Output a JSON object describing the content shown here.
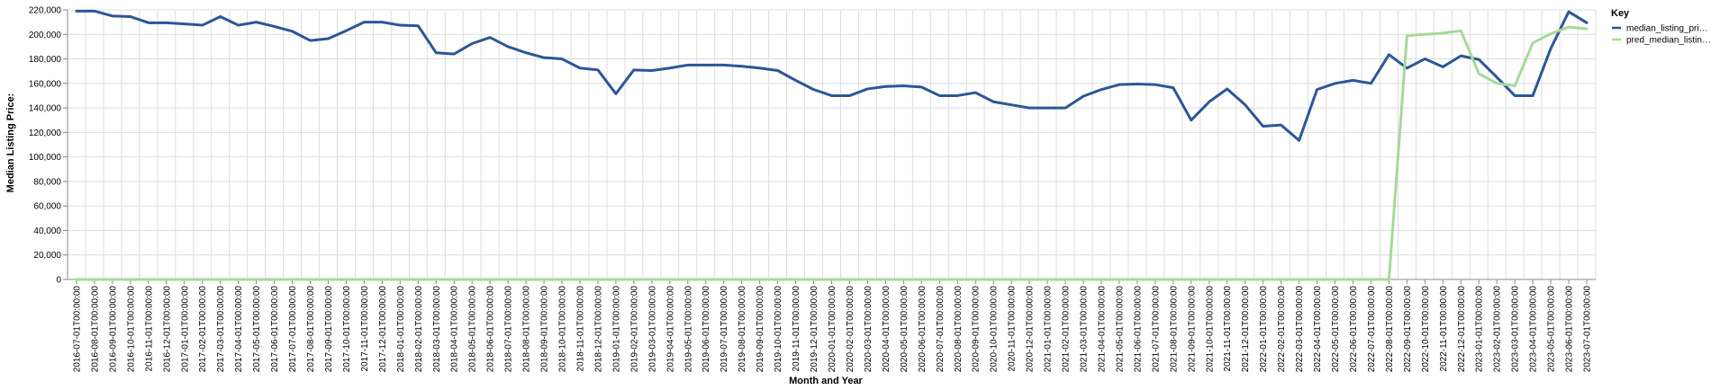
{
  "chart_data": {
    "type": "line",
    "xlabel": "Month and Year",
    "ylabel": "Median Listing Price:",
    "ylim": [
      0,
      220000
    ],
    "yticks": [
      "0",
      "20,000",
      "40,000",
      "60,000",
      "80,000",
      "100,000",
      "120,000",
      "140,000",
      "160,000",
      "180,000",
      "200,000",
      "220,000"
    ],
    "grid": true,
    "legend_position": "top-right",
    "legend_title": "Key",
    "categories": [
      "2016-07-01T00:00:00",
      "2016-08-01T00:00:00",
      "2016-09-01T00:00:00",
      "2016-10-01T00:00:00",
      "2016-11-01T00:00:00",
      "2016-12-01T00:00:00",
      "2017-01-01T00:00:00",
      "2017-02-01T00:00:00",
      "2017-03-01T00:00:00",
      "2017-04-01T00:00:00",
      "2017-05-01T00:00:00",
      "2017-06-01T00:00:00",
      "2017-07-01T00:00:00",
      "2017-08-01T00:00:00",
      "2017-09-01T00:00:00",
      "2017-10-01T00:00:00",
      "2017-11-01T00:00:00",
      "2017-12-01T00:00:00",
      "2018-01-01T00:00:00",
      "2018-02-01T00:00:00",
      "2018-03-01T00:00:00",
      "2018-04-01T00:00:00",
      "2018-05-01T00:00:00",
      "2018-06-01T00:00:00",
      "2018-07-01T00:00:00",
      "2018-08-01T00:00:00",
      "2018-09-01T00:00:00",
      "2018-10-01T00:00:00",
      "2018-11-01T00:00:00",
      "2018-12-01T00:00:00",
      "2019-01-01T00:00:00",
      "2019-02-01T00:00:00",
      "2019-03-01T00:00:00",
      "2019-04-01T00:00:00",
      "2019-05-01T00:00:00",
      "2019-06-01T00:00:00",
      "2019-07-01T00:00:00",
      "2019-08-01T00:00:00",
      "2019-09-01T00:00:00",
      "2019-10-01T00:00:00",
      "2019-11-01T00:00:00",
      "2019-12-01T00:00:00",
      "2020-01-01T00:00:00",
      "2020-02-01T00:00:00",
      "2020-03-01T00:00:00",
      "2020-04-01T00:00:00",
      "2020-05-01T00:00:00",
      "2020-06-01T00:00:00",
      "2020-07-01T00:00:00",
      "2020-08-01T00:00:00",
      "2020-09-01T00:00:00",
      "2020-10-01T00:00:00",
      "2020-11-01T00:00:00",
      "2020-12-01T00:00:00",
      "2021-01-01T00:00:00",
      "2021-02-01T00:00:00",
      "2021-03-01T00:00:00",
      "2021-04-01T00:00:00",
      "2021-05-01T00:00:00",
      "2021-06-01T00:00:00",
      "2021-07-01T00:00:00",
      "2021-08-01T00:00:00",
      "2021-09-01T00:00:00",
      "2021-10-01T00:00:00",
      "2021-11-01T00:00:00",
      "2021-12-01T00:00:00",
      "2022-01-01T00:00:00",
      "2022-02-01T00:00:00",
      "2022-03-01T00:00:00",
      "2022-04-01T00:00:00",
      "2022-05-01T00:00:00",
      "2022-06-01T00:00:00",
      "2022-07-01T00:00:00",
      "2022-08-01T00:00:00",
      "2022-09-01T00:00:00",
      "2022-10-01T00:00:00",
      "2022-11-01T00:00:00",
      "2022-12-01T00:00:00",
      "2023-01-01T00:00:00",
      "2023-02-01T00:00:00",
      "2023-03-01T00:00:00",
      "2023-04-01T00:00:00",
      "2023-05-01T00:00:00",
      "2023-06-01T00:00:00",
      "2023-07-01T00:00:00"
    ],
    "series": [
      {
        "name": "median_listing_pri…",
        "color": "#2c5697",
        "values": [
          219000,
          219000,
          215000,
          214500,
          209500,
          209500,
          208500,
          207500,
          214500,
          207500,
          210000,
          206500,
          202500,
          195000,
          196500,
          203000,
          210000,
          210000,
          207500,
          207000,
          185000,
          184000,
          192500,
          197500,
          190000,
          185000,
          181000,
          180000,
          172500,
          171000,
          151500,
          171000,
          170500,
          172500,
          175000,
          175000,
          175000,
          174000,
          172500,
          170500,
          162500,
          155000,
          150000,
          150000,
          155500,
          157500,
          158000,
          157000,
          150000,
          150000,
          152500,
          145000,
          142500,
          140000,
          140000,
          140000,
          149500,
          155000,
          159000,
          159500,
          159000,
          156500,
          130000,
          145000,
          155500,
          142500,
          125000,
          126000,
          113500,
          155000,
          160000,
          162500,
          160000,
          183500,
          172500,
          180000,
          173500,
          182500,
          179500,
          165000,
          150000,
          150000,
          188500,
          218500,
          209500
        ]
      },
      {
        "name": "pred_median_listin…",
        "color": "#a6d99a",
        "values": [
          0,
          0,
          0,
          0,
          0,
          0,
          0,
          0,
          0,
          0,
          0,
          0,
          0,
          0,
          0,
          0,
          0,
          0,
          0,
          0,
          0,
          0,
          0,
          0,
          0,
          0,
          0,
          0,
          0,
          0,
          0,
          0,
          0,
          0,
          0,
          0,
          0,
          0,
          0,
          0,
          0,
          0,
          0,
          0,
          0,
          0,
          0,
          0,
          0,
          0,
          0,
          0,
          0,
          0,
          0,
          0,
          0,
          0,
          0,
          0,
          0,
          0,
          0,
          0,
          0,
          0,
          0,
          0,
          0,
          0,
          0,
          0,
          0,
          0,
          199000,
          200000,
          201000,
          203000,
          168000,
          160000,
          158000,
          193000,
          200500,
          206000,
          204500
        ]
      }
    ]
  }
}
